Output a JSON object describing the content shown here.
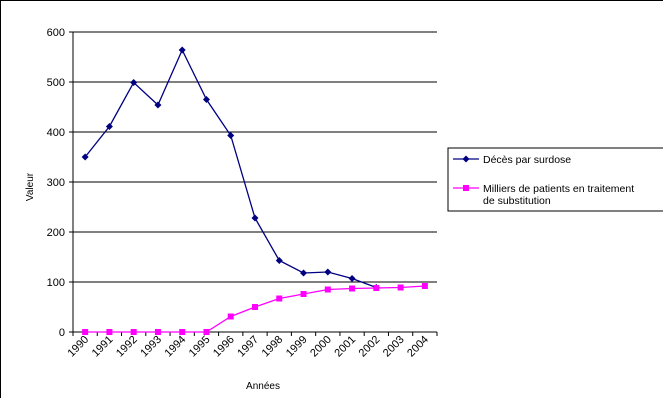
{
  "chart_data": {
    "type": "line",
    "title": "",
    "xlabel": "Années",
    "ylabel": "Valeur",
    "categories": [
      "1990",
      "1991",
      "1992",
      "1993",
      "1994",
      "1995",
      "1996",
      "1997",
      "1998",
      "1999",
      "2000",
      "2001",
      "2002",
      "2003",
      "2004"
    ],
    "ylim": [
      0,
      600
    ],
    "yticks": [
      "0",
      "100",
      "200",
      "300",
      "400",
      "500",
      "600"
    ],
    "grid": true,
    "legend_position": "right",
    "series": [
      {
        "name": "Décès par surdose",
        "color": "#000080",
        "marker": "diamond",
        "values": [
          350,
          411,
          499,
          454,
          564,
          465,
          393,
          228,
          143,
          118,
          120,
          107,
          89,
          null,
          null
        ]
      },
      {
        "name": "Milliers de patients en traitement de substitution",
        "color": "#ff00ff",
        "marker": "square",
        "values": [
          0,
          0,
          0,
          0,
          0,
          0,
          31,
          50,
          67,
          76,
          85,
          87,
          88,
          89,
          92
        ]
      }
    ]
  }
}
